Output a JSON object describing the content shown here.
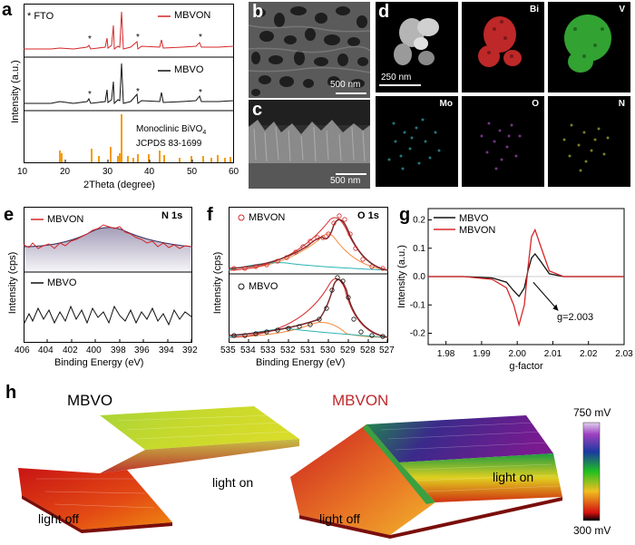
{
  "panels": {
    "a": {
      "label": "a",
      "fto_note": "* FTO",
      "legend_mbvon": "MBVON",
      "legend_mbvo": "MBVO",
      "reference_line1": "Monoclinic BiVO",
      "reference_sub": "4",
      "reference_line2": "JCPDS 83-1699",
      "ylabel": "Intensity (a.u.)",
      "xlabel": "2Theta (degree)",
      "xticks": [
        "10",
        "20",
        "30",
        "40",
        "50",
        "60"
      ]
    },
    "b": {
      "label": "b",
      "scale": "500 nm"
    },
    "c": {
      "label": "c",
      "scale": "500 nm"
    },
    "d": {
      "label": "d",
      "scale": "250 nm",
      "maps": [
        "Bi",
        "V",
        "Mo",
        "O",
        "N"
      ]
    },
    "e": {
      "label": "e",
      "title": "N 1s",
      "legend_mbvon": "MBVON",
      "legend_mbvo": "MBVO",
      "ylabel": "Intensity (cps)",
      "xlabel": "Binding Energy (eV)",
      "xticks": [
        "406",
        "404",
        "402",
        "400",
        "398",
        "396",
        "394",
        "392"
      ]
    },
    "f": {
      "label": "f",
      "title": "O 1s",
      "legend_mbvon": "MBVON",
      "legend_mbvo": "MBVO",
      "ylabel": "Intensity (cps)",
      "xlabel": "Binding Energy (eV)",
      "xticks": [
        "535",
        "534",
        "533",
        "532",
        "531",
        "530",
        "529",
        "528",
        "527"
      ]
    },
    "g": {
      "label": "g",
      "annotation": "g=2.003"
    },
    "h": {
      "label": "h",
      "title_mbvo": "MBVO",
      "title_mbvon": "MBVON",
      "light_on": "light on",
      "light_off": "light off",
      "colorbar_max": "750 mV",
      "colorbar_min": "300 mV"
    }
  },
  "colors": {
    "mbvon": "#d62728",
    "mbvo": "#111111",
    "orange": "#f39c12"
  },
  "chart_data": [
    {
      "type": "line",
      "panel": "g",
      "title": "",
      "xlabel": "g-factor",
      "ylabel": "Intensity (a.u.)",
      "xlim": [
        1.975,
        2.03
      ],
      "ylim": [
        -0.24,
        0.24
      ],
      "xticks": [
        1.98,
        1.99,
        2.0,
        2.01,
        2.02,
        2.03
      ],
      "yticks": [
        -0.2,
        -0.1,
        0.0,
        0.1,
        0.2
      ],
      "series": [
        {
          "name": "MBVO",
          "x": [
            1.975,
            1.985,
            1.993,
            1.997,
            1.999,
            2.0005,
            2.002,
            2.003,
            2.004,
            2.005,
            2.0065,
            2.009,
            2.013,
            2.02,
            2.03
          ],
          "y": [
            0,
            0,
            -0.005,
            -0.02,
            -0.05,
            -0.07,
            -0.04,
            0.02,
            0.065,
            0.08,
            0.055,
            0.01,
            0,
            0,
            0
          ]
        },
        {
          "name": "MBVON",
          "x": [
            1.975,
            1.985,
            1.993,
            1.997,
            1.999,
            2.0005,
            2.002,
            2.003,
            2.004,
            2.005,
            2.0065,
            2.009,
            2.013,
            2.02,
            2.03
          ],
          "y": [
            0,
            0,
            -0.01,
            -0.04,
            -0.1,
            -0.17,
            -0.1,
            0.03,
            0.14,
            0.165,
            0.11,
            0.02,
            0,
            0,
            0
          ]
        }
      ]
    }
  ]
}
